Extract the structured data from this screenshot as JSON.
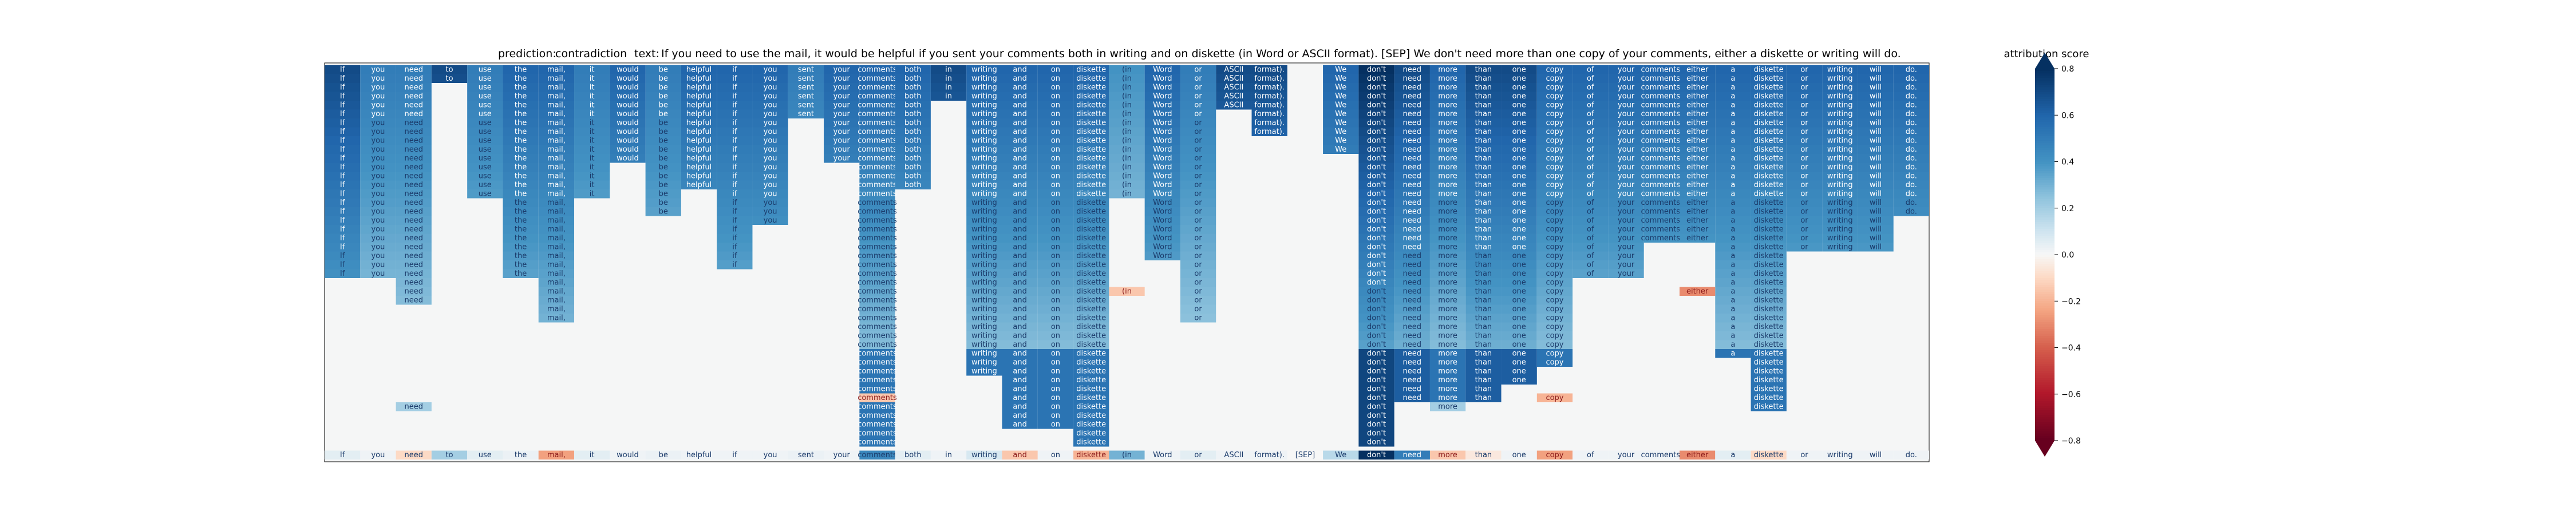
{
  "chart_data": {
    "type": "heatmap",
    "title": {
      "prediction_label": "prediction:",
      "prediction_value": "contradiction",
      "text_label": "text:",
      "text_value": "If you need to use the mail, it would be helpful if you sent your comments both in writing and on diskette (in Word or ASCII format). [SEP] We don't need more than one copy of your comments, either a diskette or writing will do."
    },
    "tokens": [
      "If",
      "you",
      "need",
      "to",
      "use",
      "the",
      "mail,",
      "it",
      "would",
      "be",
      "helpful",
      "if",
      "you",
      "sent",
      "your",
      "comments",
      "both",
      "in",
      "writing",
      "and",
      "on",
      "diskette",
      "(in",
      "Word",
      "or",
      "ASCII",
      "format).",
      "[SEP]",
      "We",
      "don't",
      "need",
      "more",
      "than",
      "one",
      "copy",
      "of",
      "your",
      "comments,",
      "either",
      "a",
      "diskette",
      "or",
      "writing",
      "will",
      "do."
    ],
    "colorbar": {
      "title": "attribution score",
      "ticks": [
        "0.8",
        "0.6",
        "0.4",
        "0.2",
        "0.0",
        "−0.2",
        "−0.4",
        "−0.6",
        "−0.8"
      ],
      "tick_values": [
        0.8,
        0.6,
        0.4,
        0.2,
        0.0,
        -0.2,
        -0.4,
        -0.6,
        -0.8
      ],
      "range": [
        -0.8,
        0.8
      ],
      "colormap": "RdBu"
    },
    "stack_rows": 31,
    "active_until_row": [
      24,
      24,
      27,
      2,
      15,
      24,
      29,
      15,
      11,
      17,
      14,
      23,
      18,
      6,
      11,
      45,
      14,
      4,
      35,
      41,
      41,
      44,
      15,
      22,
      29,
      5,
      8,
      0,
      10,
      45,
      38,
      38,
      38,
      36,
      34,
      24,
      24,
      20,
      20,
      33,
      39,
      21,
      21,
      21,
      17
    ],
    "strength": [
      0.7,
      0.5,
      0.5,
      0.7,
      0.5,
      0.6,
      0.6,
      0.5,
      0.6,
      0.5,
      0.6,
      0.6,
      0.6,
      0.5,
      0.6,
      0.6,
      0.6,
      0.7,
      0.6,
      0.6,
      0.6,
      0.6,
      0.4,
      0.6,
      0.5,
      0.7,
      0.7,
      0.0,
      0.6,
      0.8,
      0.7,
      0.6,
      0.7,
      0.7,
      0.6,
      0.6,
      0.6,
      0.6,
      0.6,
      0.6,
      0.6,
      0.6,
      0.6,
      0.6,
      0.6
    ],
    "bottom_row_scores": [
      0.05,
      0.02,
      -0.1,
      0.2,
      0.05,
      0.03,
      -0.25,
      0.05,
      0.02,
      0.03,
      0.02,
      0.02,
      0.02,
      0.03,
      0.02,
      0.45,
      0.05,
      0.02,
      0.08,
      -0.15,
      0.02,
      -0.2,
      0.3,
      0.02,
      0.05,
      0.02,
      0.02,
      0.0,
      0.15,
      0.9,
      0.5,
      -0.15,
      -0.05,
      0.02,
      -0.25,
      0.02,
      0.02,
      0.02,
      -0.3,
      0.05,
      -0.1,
      0.02,
      0.02,
      0.02,
      0.02
    ],
    "extra_cells": [
      {
        "token": "(in",
        "row": 25,
        "score": -0.15
      },
      {
        "token": "either",
        "row": 25,
        "score": -0.3
      },
      {
        "token": "comments",
        "row": 37,
        "score": -0.15
      },
      {
        "token": "need",
        "row": 38,
        "score": 0.2
      },
      {
        "token": "more",
        "row": 38,
        "score": 0.2
      },
      {
        "token": "copy",
        "row": 37,
        "score": -0.2
      }
    ]
  }
}
